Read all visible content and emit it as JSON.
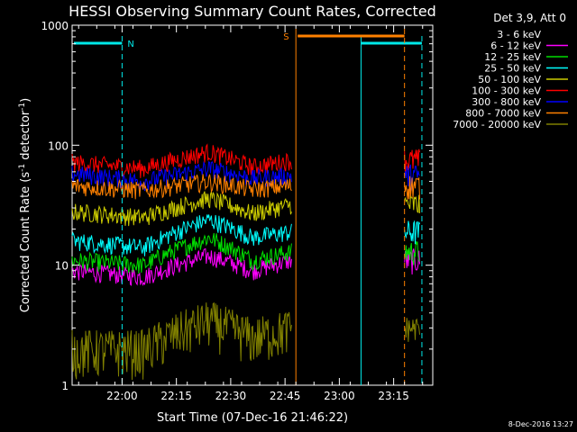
{
  "chart_data": {
    "type": "line",
    "title": "HESSI Observing Summary Count Rates, Corrected",
    "xlabel": "Start Time (07-Dec-16 21:46:22)",
    "ylabel": "Corrected Count Rate (s",
    "ylabel_sup1": "-1",
    "ylabel_mid": " detector",
    "ylabel_sup2": "-1",
    "ylabel_end": ")",
    "yscale": "log",
    "ylim": [
      1,
      1000
    ],
    "xlim_minutes": [
      21.77,
      23.43
    ],
    "x_ticks": [
      "22:00",
      "22:15",
      "22:30",
      "22:45",
      "23:00",
      "23:15"
    ],
    "y_ticks": [
      "1",
      "10",
      "100",
      "1000"
    ],
    "legend_header": "Det 3,9, Att 0",
    "legend_position": "right",
    "timestamp": "8-Dec-2016 13:27",
    "annotations": {
      "night_label": "N",
      "saa_label": "S",
      "night_color": "#00e8e8",
      "saa_color": "#ff8000"
    },
    "series": [
      {
        "name": "3 - 6 keV",
        "color": "#000000",
        "base": 48,
        "x": [
          21.77,
          22.1,
          22.4,
          22.6,
          22.78
        ],
        "y": [
          50,
          44,
          60,
          45,
          55
        ]
      },
      {
        "name": "6 - 12 keV",
        "color": "#ff00ff",
        "base": 8,
        "x": [
          21.77,
          22.1,
          22.4,
          22.6,
          22.78
        ],
        "y": [
          9,
          8,
          12,
          9,
          11
        ]
      },
      {
        "name": "12 - 25 keV",
        "color": "#00dd00",
        "base": 11,
        "x": [
          21.77,
          22.1,
          22.4,
          22.6,
          22.78
        ],
        "y": [
          11,
          10,
          17,
          11,
          13
        ]
      },
      {
        "name": "25 - 50 keV",
        "color": "#00ffff",
        "base": 15,
        "x": [
          21.77,
          22.1,
          22.4,
          22.6,
          22.78
        ],
        "y": [
          16,
          14,
          24,
          17,
          19
        ]
      },
      {
        "name": "50 - 100 keV",
        "color": "#cccc00",
        "base": 26,
        "x": [
          21.77,
          22.1,
          22.4,
          22.6,
          22.78
        ],
        "y": [
          28,
          25,
          36,
          27,
          32
        ]
      },
      {
        "name": "100 - 300 keV",
        "color": "#ff0000",
        "base": 65,
        "x": [
          21.77,
          22.1,
          22.4,
          22.6,
          22.78
        ],
        "y": [
          72,
          64,
          88,
          66,
          75
        ]
      },
      {
        "name": "300 - 800 keV",
        "color": "#0000ff",
        "base": 56,
        "x": [
          21.77,
          22.1,
          22.4,
          22.6,
          22.78
        ],
        "y": [
          58,
          50,
          64,
          53,
          56
        ]
      },
      {
        "name": "800 - 7000 keV",
        "color": "#ff8000",
        "base": 45,
        "x": [
          21.77,
          22.1,
          22.4,
          22.6,
          22.78
        ],
        "y": [
          46,
          42,
          50,
          43,
          46
        ]
      },
      {
        "name": "7000 - 20000 keV",
        "color": "#808000",
        "base": 2,
        "x": [
          21.77,
          22.1,
          22.4,
          22.6,
          22.78
        ],
        "y": [
          2,
          2,
          3.5,
          2.5,
          3
        ]
      }
    ]
  }
}
